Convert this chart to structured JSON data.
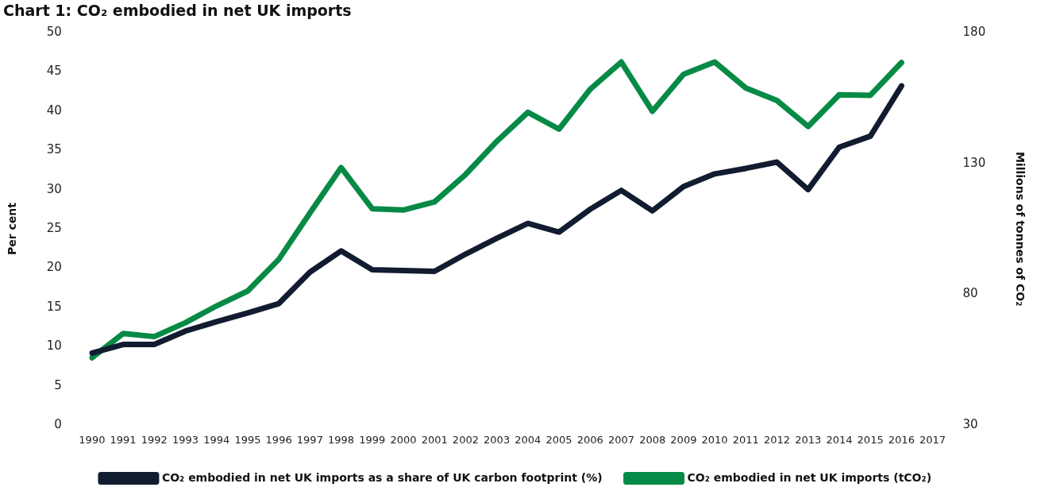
{
  "chart_data": {
    "type": "line",
    "title": "Chart 1: CO₂ embodied in net UK imports",
    "ylabel": "Per cent",
    "y2label": "Millions of tonnes of CO₂",
    "categories": [
      "1990",
      "1991",
      "1992",
      "1993",
      "1994",
      "1995",
      "1996",
      "1997",
      "1998",
      "1999",
      "2000",
      "2001",
      "2002",
      "2003",
      "2004",
      "2005",
      "2006",
      "2007",
      "2008",
      "2009",
      "2010",
      "2011",
      "2012",
      "2013",
      "2014",
      "2015",
      "2016",
      "2017"
    ],
    "series": [
      {
        "name": "CO₂ embodied in net UK imports as a share of UK carbon footprint (%)",
        "color": "#121c30",
        "values": [
          9.2,
          10.3,
          10.3,
          12.0,
          13.2,
          14.3,
          15.5,
          19.5,
          22.2,
          19.8,
          19.7,
          19.6,
          21.8,
          23.8,
          25.7,
          24.6,
          27.5,
          29.9,
          27.3,
          30.4,
          32.0,
          32.7,
          33.5,
          30.0,
          35.4,
          36.8,
          43.2,
          null
        ]
      },
      {
        "name": "CO₂ embodied in net UK imports (tCO₂)",
        "color": "#068a45",
        "axis": "y2",
        "values": [
          55.8,
          65.1,
          63.9,
          69.2,
          75.6,
          81.3,
          93.4,
          111.1,
          128.4,
          112.7,
          112.2,
          115.3,
          125.8,
          138.4,
          149.5,
          143.1,
          158.3,
          168.7,
          149.9,
          164.0,
          168.7,
          158.8,
          154.0,
          144.1,
          156.2,
          156.0,
          168.5,
          null
        ]
      }
    ],
    "ylim": [
      0,
      50
    ],
    "yticks": [
      0,
      5,
      10,
      15,
      20,
      25,
      30,
      35,
      40,
      45,
      50
    ],
    "y2lim": [
      30,
      180
    ],
    "y2ticks": [
      30,
      80,
      130,
      180
    ],
    "grid": false,
    "legend": "bottom",
    "marker": "none",
    "line_style": "solid"
  }
}
